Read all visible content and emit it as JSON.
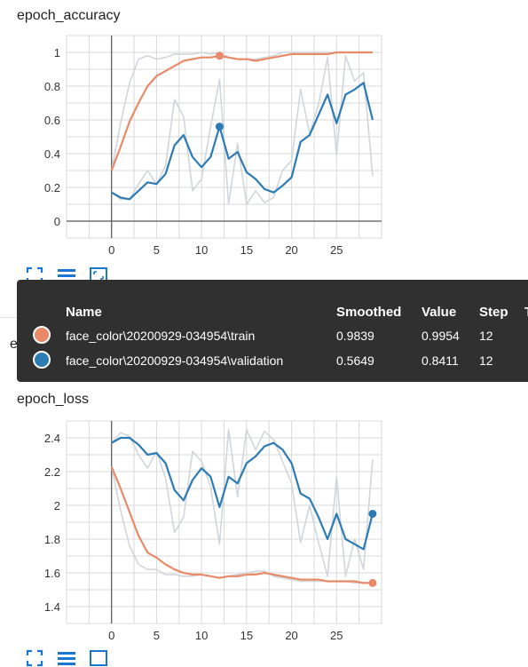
{
  "colors": {
    "train": "#e88a68",
    "validation": "#2d7bb5",
    "raw": "#d0d6db",
    "tooltip_bg": "#303030"
  },
  "cards": [
    {
      "title": "epoch_accuracy"
    },
    {
      "title": "epoch_loss"
    }
  ],
  "hidden_card_title": "ep",
  "toolbar_icons": [
    "fullscreen-icon",
    "toggle-log-scale-icon",
    "fit-domain-icon"
  ],
  "tooltip": {
    "headers": {
      "name": "Name",
      "smoothed": "Smoothed",
      "value": "Value",
      "step": "Step",
      "time": "T"
    },
    "rows": [
      {
        "name": "face_color\\20200929-034954\\train",
        "smoothed": "0.9839",
        "value": "0.9954",
        "step": "12",
        "color_key": "train"
      },
      {
        "name": "face_color\\20200929-034954\\validation",
        "smoothed": "0.5649",
        "value": "0.8411",
        "step": "12",
        "color_key": "validation"
      }
    ]
  },
  "chart_data": [
    {
      "type": "line",
      "title": "epoch_accuracy",
      "xlim": [
        -5,
        30
      ],
      "ylim": [
        -0.1,
        1.1
      ],
      "xticks": [
        0,
        5,
        10,
        15,
        20,
        25
      ],
      "yticks": [
        0,
        0.2,
        0.4,
        0.6,
        0.8,
        1
      ],
      "ytick_labels": [
        "0",
        "0.2",
        "0.4",
        "0.6",
        "0.8",
        "1"
      ],
      "grid": true,
      "hover_step": 12,
      "series": [
        {
          "name": "face_color\\20200929-034954\\train",
          "color_key": "train",
          "smoothed": true,
          "x": [
            0,
            1,
            2,
            3,
            4,
            5,
            6,
            7,
            8,
            9,
            10,
            11,
            12,
            13,
            14,
            15,
            16,
            17,
            18,
            19,
            20,
            21,
            22,
            23,
            24,
            25,
            26,
            27,
            28,
            29
          ],
          "y": [
            0.3,
            0.44,
            0.59,
            0.7,
            0.8,
            0.86,
            0.89,
            0.92,
            0.95,
            0.96,
            0.97,
            0.97,
            0.98,
            0.97,
            0.96,
            0.96,
            0.95,
            0.96,
            0.97,
            0.98,
            0.99,
            0.99,
            0.99,
            0.99,
            0.99,
            1.0,
            1.0,
            1.0,
            1.0,
            1.0
          ]
        },
        {
          "name": "face_color\\20200929-034954\\train (raw)",
          "color_key": "raw",
          "smoothed": false,
          "x": [
            0,
            1,
            2,
            3,
            4,
            5,
            6,
            7,
            8,
            9,
            10,
            11,
            12,
            13,
            14,
            15,
            16,
            17,
            18,
            19,
            20,
            21,
            22,
            23,
            24,
            25,
            26,
            27,
            28,
            29
          ],
          "y": [
            0.3,
            0.58,
            0.82,
            0.96,
            0.98,
            0.96,
            0.97,
            0.99,
            0.99,
            0.99,
            1.0,
            0.99,
            1.0,
            0.97,
            0.96,
            0.96,
            0.96,
            0.97,
            0.98,
            1.0,
            1.0,
            1.0,
            1.0,
            1.0,
            1.0,
            1.0,
            1.0,
            1.0,
            1.0,
            1.0
          ]
        },
        {
          "name": "face_color\\20200929-034954\\validation",
          "color_key": "validation",
          "smoothed": true,
          "x": [
            0,
            1,
            2,
            3,
            4,
            5,
            6,
            7,
            8,
            9,
            10,
            11,
            12,
            13,
            14,
            15,
            16,
            17,
            18,
            19,
            20,
            21,
            22,
            23,
            24,
            25,
            26,
            27,
            28,
            29
          ],
          "y": [
            0.17,
            0.14,
            0.13,
            0.18,
            0.23,
            0.22,
            0.28,
            0.45,
            0.51,
            0.38,
            0.32,
            0.38,
            0.56,
            0.37,
            0.41,
            0.29,
            0.25,
            0.19,
            0.17,
            0.21,
            0.26,
            0.47,
            0.51,
            0.63,
            0.75,
            0.58,
            0.75,
            0.78,
            0.82,
            0.6
          ]
        },
        {
          "name": "face_color\\20200929-034954\\validation (raw)",
          "color_key": "raw",
          "smoothed": false,
          "x": [
            0,
            1,
            2,
            3,
            4,
            5,
            6,
            7,
            8,
            9,
            10,
            11,
            12,
            13,
            14,
            15,
            16,
            17,
            18,
            19,
            20,
            21,
            22,
            23,
            24,
            25,
            26,
            27,
            28,
            29
          ],
          "y": [
            0.17,
            0.13,
            0.13,
            0.22,
            0.3,
            0.22,
            0.33,
            0.72,
            0.62,
            0.18,
            0.25,
            0.56,
            0.84,
            0.1,
            0.46,
            0.1,
            0.18,
            0.11,
            0.14,
            0.3,
            0.36,
            0.78,
            0.52,
            0.69,
            0.97,
            0.39,
            0.98,
            0.83,
            0.88,
            0.27
          ]
        }
      ]
    },
    {
      "type": "line",
      "title": "epoch_loss",
      "xlim": [
        -5,
        30
      ],
      "ylim": [
        1.3,
        2.5
      ],
      "xticks": [
        0,
        5,
        10,
        15,
        20,
        25
      ],
      "yticks": [
        1.4,
        1.6,
        1.8,
        2,
        2.2,
        2.4
      ],
      "ytick_labels": [
        "1.4",
        "1.6",
        "1.8",
        "2",
        "2.2",
        "2.4"
      ],
      "grid": true,
      "hover_step": 29,
      "series": [
        {
          "name": "face_color\\20200929-034954\\train",
          "color_key": "train",
          "smoothed": true,
          "x": [
            0,
            1,
            2,
            3,
            4,
            5,
            6,
            7,
            8,
            9,
            10,
            11,
            12,
            13,
            14,
            15,
            16,
            17,
            18,
            19,
            20,
            21,
            22,
            23,
            24,
            25,
            26,
            27,
            28,
            29
          ],
          "y": [
            2.23,
            2.1,
            1.96,
            1.82,
            1.72,
            1.69,
            1.65,
            1.62,
            1.6,
            1.59,
            1.59,
            1.58,
            1.57,
            1.58,
            1.58,
            1.59,
            1.59,
            1.6,
            1.59,
            1.58,
            1.57,
            1.56,
            1.56,
            1.56,
            1.55,
            1.55,
            1.55,
            1.55,
            1.54,
            1.54
          ]
        },
        {
          "name": "face_color\\20200929-034954\\train (raw)",
          "color_key": "raw",
          "smoothed": false,
          "x": [
            0,
            1,
            2,
            3,
            4,
            5,
            6,
            7,
            8,
            9,
            10,
            11,
            12,
            13,
            14,
            15,
            16,
            17,
            18,
            19,
            20,
            21,
            22,
            23,
            24,
            25,
            26,
            27,
            28,
            29
          ],
          "y": [
            2.23,
            1.97,
            1.76,
            1.65,
            1.62,
            1.62,
            1.59,
            1.59,
            1.58,
            1.58,
            1.59,
            1.58,
            1.57,
            1.58,
            1.59,
            1.6,
            1.61,
            1.61,
            1.58,
            1.57,
            1.56,
            1.55,
            1.55,
            1.55,
            1.55,
            1.55,
            1.55,
            1.54,
            1.54,
            1.54
          ]
        },
        {
          "name": "face_color\\20200929-034954\\validation",
          "color_key": "validation",
          "smoothed": true,
          "x": [
            0,
            1,
            2,
            3,
            4,
            5,
            6,
            7,
            8,
            9,
            10,
            11,
            12,
            13,
            14,
            15,
            16,
            17,
            18,
            19,
            20,
            21,
            22,
            23,
            24,
            25,
            26,
            27,
            28,
            29
          ],
          "y": [
            2.37,
            2.4,
            2.4,
            2.36,
            2.3,
            2.31,
            2.25,
            2.09,
            2.03,
            2.15,
            2.22,
            2.17,
            1.99,
            2.17,
            2.13,
            2.25,
            2.29,
            2.35,
            2.37,
            2.33,
            2.25,
            2.07,
            2.04,
            1.93,
            1.8,
            1.95,
            1.8,
            1.77,
            1.74,
            1.95
          ]
        },
        {
          "name": "face_color\\20200929-034954\\validation (raw)",
          "color_key": "raw",
          "smoothed": false,
          "x": [
            0,
            1,
            2,
            3,
            4,
            5,
            6,
            7,
            8,
            9,
            10,
            11,
            12,
            13,
            14,
            15,
            16,
            17,
            18,
            19,
            20,
            21,
            22,
            23,
            24,
            25,
            26,
            27,
            28,
            29
          ],
          "y": [
            2.37,
            2.43,
            2.41,
            2.3,
            2.22,
            2.32,
            2.16,
            1.84,
            1.93,
            2.32,
            2.26,
            2.11,
            1.77,
            2.45,
            2.05,
            2.45,
            2.33,
            2.44,
            2.39,
            2.26,
            2.13,
            1.78,
            2.0,
            1.78,
            1.58,
            2.17,
            1.58,
            1.8,
            1.62,
            2.27
          ]
        }
      ]
    }
  ]
}
